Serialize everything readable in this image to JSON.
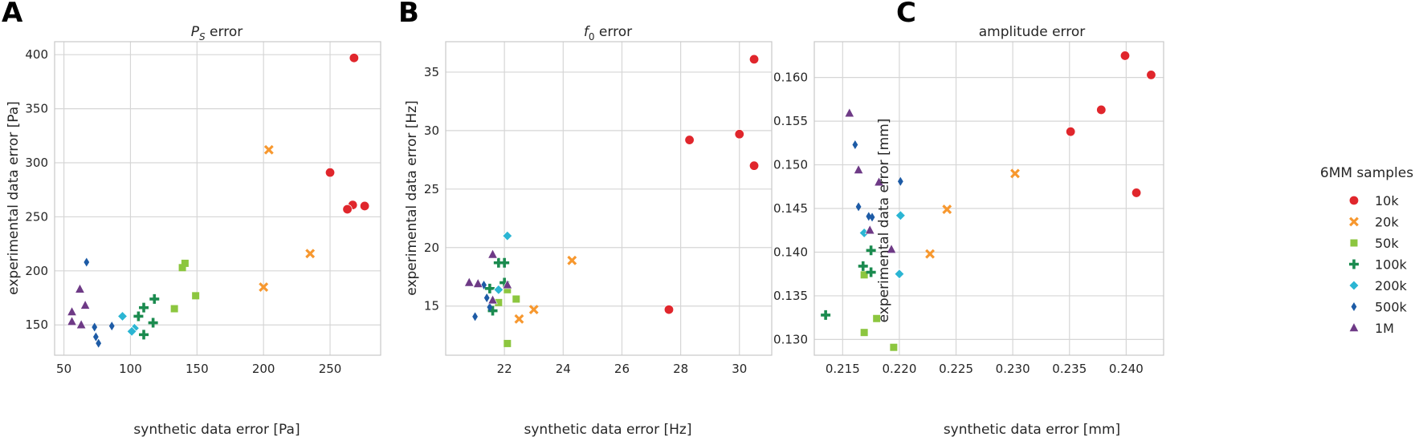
{
  "panel_letters": [
    "A",
    "B",
    "C"
  ],
  "legend": {
    "title": "6MM samples",
    "entries": [
      "10k",
      "20k",
      "50k",
      "100k",
      "200k",
      "500k",
      "1M"
    ]
  },
  "colors": {
    "10k": "#e0262c",
    "20k": "#f7982f",
    "50k": "#8cc63f",
    "100k": "#1b8b4f",
    "200k": "#2bb5d3",
    "500k": "#1d5ba6",
    "1M": "#6e3a86"
  },
  "markers": {
    "10k": "circle",
    "20k": "x",
    "50k": "square",
    "100k": "plus",
    "200k": "diamond",
    "500k": "thin-diamond",
    "1M": "triangle"
  },
  "panel_titles": {
    "A": {
      "main": "P",
      "sub": "S",
      "rest": " error"
    },
    "B": {
      "main": "f",
      "sub": "0",
      "rest": " error"
    },
    "C": {
      "main": "amplitude error",
      "sub": "",
      "rest": ""
    }
  },
  "chart_data": [
    {
      "type": "scatter",
      "title": "PS error",
      "xlabel": "synthetic data error [Pa]",
      "ylabel": "experimental data error [Pa]",
      "xlim": [
        43,
        288
      ],
      "ylim": [
        122,
        412
      ],
      "xticks": [
        50,
        100,
        150,
        200,
        250
      ],
      "yticks": [
        150,
        200,
        250,
        300,
        350,
        400
      ],
      "xtick_labels": [
        "50",
        "100",
        "150",
        "200",
        "250"
      ],
      "ytick_labels": [
        "150",
        "200",
        "250",
        "300",
        "350",
        "400"
      ],
      "series": [
        {
          "name": "10k",
          "points": [
            [
              268,
              397
            ],
            [
              250,
              291
            ],
            [
              267,
              261
            ],
            [
              263,
              257
            ],
            [
              276,
              260
            ]
          ]
        },
        {
          "name": "20k",
          "points": [
            [
              204,
              312
            ],
            [
              235,
              216
            ],
            [
              200,
              185
            ]
          ]
        },
        {
          "name": "50k",
          "points": [
            [
              141,
              207
            ],
            [
              139,
              203
            ],
            [
              149,
              177
            ],
            [
              133,
              165
            ]
          ]
        },
        {
          "name": "100k",
          "points": [
            [
              118,
              174
            ],
            [
              110,
              166
            ],
            [
              106,
              158
            ],
            [
              117,
              152
            ],
            [
              110,
              141
            ]
          ]
        },
        {
          "name": "200k",
          "points": [
            [
              94,
              158
            ],
            [
              103,
              147
            ],
            [
              101,
              144
            ]
          ]
        },
        {
          "name": "500k",
          "points": [
            [
              67,
              208
            ],
            [
              86,
              149
            ],
            [
              73,
              148
            ],
            [
              74,
              139
            ],
            [
              76,
              133
            ]
          ]
        },
        {
          "name": "1M",
          "points": [
            [
              62,
              183
            ],
            [
              66,
              168
            ],
            [
              56,
              162
            ],
            [
              56,
              153
            ],
            [
              63,
              150
            ]
          ]
        }
      ]
    },
    {
      "type": "scatter",
      "title": "f0 error",
      "xlabel": "synthetic data error [Hz]",
      "ylabel": "experimental data error [Hz]",
      "xlim": [
        20.0,
        31.1
      ],
      "ylim": [
        10.8,
        37.6
      ],
      "xticks": [
        22,
        24,
        26,
        28,
        30
      ],
      "yticks": [
        15,
        20,
        25,
        30,
        35
      ],
      "xtick_labels": [
        "22",
        "24",
        "26",
        "28",
        "30"
      ],
      "ytick_labels": [
        "15",
        "20",
        "25",
        "30",
        "35"
      ],
      "series": [
        {
          "name": "10k",
          "points": [
            [
              30.5,
              36.1
            ],
            [
              28.3,
              29.2
            ],
            [
              30.0,
              29.7
            ],
            [
              30.5,
              27.0
            ],
            [
              27.6,
              14.7
            ]
          ]
        },
        {
          "name": "20k",
          "points": [
            [
              24.3,
              18.9
            ],
            [
              23.0,
              14.7
            ],
            [
              22.5,
              13.9
            ]
          ]
        },
        {
          "name": "50k",
          "points": [
            [
              22.1,
              16.4
            ],
            [
              22.4,
              15.6
            ],
            [
              21.8,
              15.3
            ],
            [
              22.1,
              11.8
            ]
          ]
        },
        {
          "name": "100k",
          "points": [
            [
              21.8,
              18.7
            ],
            [
              22.0,
              18.7
            ],
            [
              22.0,
              17.0
            ],
            [
              21.5,
              16.5
            ],
            [
              21.6,
              14.6
            ]
          ]
        },
        {
          "name": "200k",
          "points": [
            [
              22.1,
              21.0
            ],
            [
              21.8,
              16.4
            ]
          ]
        },
        {
          "name": "500k",
          "points": [
            [
              21.3,
              16.8
            ],
            [
              21.4,
              15.7
            ],
            [
              21.5,
              14.9
            ],
            [
              21.0,
              14.1
            ]
          ]
        },
        {
          "name": "1M",
          "points": [
            [
              21.6,
              19.4
            ],
            [
              20.8,
              17.0
            ],
            [
              21.1,
              16.9
            ],
            [
              22.1,
              16.8
            ],
            [
              21.6,
              15.5
            ]
          ]
        }
      ]
    },
    {
      "type": "scatter",
      "title": "amplitude error",
      "xlabel": "synthetic data error [mm]",
      "ylabel": "experimental data error [mm]",
      "xlim": [
        0.2125,
        0.2433
      ],
      "ylim": [
        0.1282,
        0.1641
      ],
      "xticks": [
        0.215,
        0.22,
        0.225,
        0.23,
        0.235,
        0.24
      ],
      "yticks": [
        0.13,
        0.135,
        0.14,
        0.145,
        0.15,
        0.155,
        0.16
      ],
      "xtick_labels": [
        "0.215",
        "0.220",
        "0.225",
        "0.230",
        "0.235",
        "0.240"
      ],
      "ytick_labels": [
        "0.130",
        "0.135",
        "0.140",
        "0.145",
        "0.150",
        "0.155",
        "0.160"
      ],
      "series": [
        {
          "name": "10k",
          "points": [
            [
              0.2399,
              0.1625
            ],
            [
              0.2422,
              0.1603
            ],
            [
              0.2378,
              0.1563
            ],
            [
              0.2351,
              0.1538
            ],
            [
              0.2409,
              0.1468
            ]
          ]
        },
        {
          "name": "20k",
          "points": [
            [
              0.2302,
              0.149
            ],
            [
              0.2242,
              0.1449
            ],
            [
              0.2227,
              0.1398
            ]
          ]
        },
        {
          "name": "50k",
          "points": [
            [
              0.2169,
              0.1374
            ],
            [
              0.218,
              0.1324
            ],
            [
              0.2169,
              0.1308
            ],
            [
              0.2195,
              0.1291
            ]
          ]
        },
        {
          "name": "100k",
          "points": [
            [
              0.2175,
              0.1402
            ],
            [
              0.2168,
              0.1384
            ],
            [
              0.2175,
              0.1377
            ],
            [
              0.2135,
              0.1328
            ]
          ]
        },
        {
          "name": "200k",
          "points": [
            [
              0.2201,
              0.1442
            ],
            [
              0.2169,
              0.1422
            ],
            [
              0.22,
              0.1375
            ]
          ]
        },
        {
          "name": "500k",
          "points": [
            [
              0.2161,
              0.1523
            ],
            [
              0.2201,
              0.1481
            ],
            [
              0.2164,
              0.1452
            ],
            [
              0.2176,
              0.144
            ],
            [
              0.2173,
              0.1441
            ]
          ]
        },
        {
          "name": "1M",
          "points": [
            [
              0.2156,
              0.1559
            ],
            [
              0.2164,
              0.1494
            ],
            [
              0.2182,
              0.148
            ],
            [
              0.2174,
              0.1425
            ],
            [
              0.2193,
              0.1403
            ]
          ]
        }
      ]
    }
  ]
}
